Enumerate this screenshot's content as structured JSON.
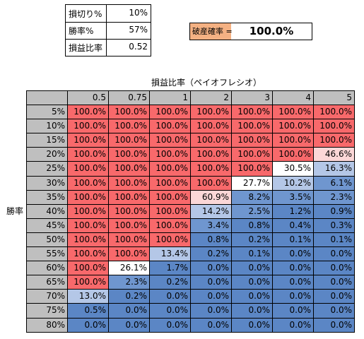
{
  "inputs": [
    {
      "label": "損切り%",
      "value": "10%"
    },
    {
      "label": "勝率%",
      "value": "57%"
    },
    {
      "label": "損益比率",
      "value": "0.52"
    }
  ],
  "ruin": {
    "label": "破産確率 =",
    "value": "100.0%"
  },
  "table": {
    "title": "損益比率（ペイオフレシオ）",
    "row_title": "勝率",
    "columns": [
      "0.5",
      "0.75",
      "1",
      "2",
      "3",
      "4",
      "5"
    ],
    "rows": [
      {
        "label": "5%",
        "values": [
          "100.0%",
          "100.0%",
          "100.0%",
          "100.0%",
          "100.0%",
          "100.0%",
          "100.0%"
        ]
      },
      {
        "label": "10%",
        "values": [
          "100.0%",
          "100.0%",
          "100.0%",
          "100.0%",
          "100.0%",
          "100.0%",
          "100.0%"
        ]
      },
      {
        "label": "15%",
        "values": [
          "100.0%",
          "100.0%",
          "100.0%",
          "100.0%",
          "100.0%",
          "100.0%",
          "100.0%"
        ]
      },
      {
        "label": "20%",
        "values": [
          "100.0%",
          "100.0%",
          "100.0%",
          "100.0%",
          "100.0%",
          "100.0%",
          "46.6%"
        ]
      },
      {
        "label": "25%",
        "values": [
          "100.0%",
          "100.0%",
          "100.0%",
          "100.0%",
          "100.0%",
          "30.5%",
          "16.3%"
        ]
      },
      {
        "label": "30%",
        "values": [
          "100.0%",
          "100.0%",
          "100.0%",
          "100.0%",
          "27.7%",
          "10.2%",
          "6.1%"
        ]
      },
      {
        "label": "35%",
        "values": [
          "100.0%",
          "100.0%",
          "100.0%",
          "60.9%",
          "8.2%",
          "3.5%",
          "2.3%"
        ]
      },
      {
        "label": "40%",
        "values": [
          "100.0%",
          "100.0%",
          "100.0%",
          "14.2%",
          "2.5%",
          "1.2%",
          "0.9%"
        ]
      },
      {
        "label": "45%",
        "values": [
          "100.0%",
          "100.0%",
          "100.0%",
          "3.4%",
          "0.8%",
          "0.4%",
          "0.3%"
        ]
      },
      {
        "label": "50%",
        "values": [
          "100.0%",
          "100.0%",
          "100.0%",
          "0.8%",
          "0.2%",
          "0.1%",
          "0.1%"
        ]
      },
      {
        "label": "55%",
        "values": [
          "100.0%",
          "100.0%",
          "13.4%",
          "0.2%",
          "0.1%",
          "0.0%",
          "0.0%"
        ]
      },
      {
        "label": "60%",
        "values": [
          "100.0%",
          "26.1%",
          "1.7%",
          "0.0%",
          "0.0%",
          "0.0%",
          "0.0%"
        ]
      },
      {
        "label": "65%",
        "values": [
          "100.0%",
          "2.3%",
          "0.2%",
          "0.0%",
          "0.0%",
          "0.0%",
          "0.0%"
        ]
      },
      {
        "label": "70%",
        "values": [
          "13.0%",
          "0.2%",
          "0.0%",
          "0.0%",
          "0.0%",
          "0.0%",
          "0.0%"
        ]
      },
      {
        "label": "75%",
        "values": [
          "0.5%",
          "0.0%",
          "0.0%",
          "0.0%",
          "0.0%",
          "0.0%",
          "0.0%"
        ]
      },
      {
        "label": "80%",
        "values": [
          "0.0%",
          "0.0%",
          "0.0%",
          "0.0%",
          "0.0%",
          "0.0%",
          "0.0%"
        ]
      }
    ]
  },
  "colors": {
    "header_gray": "#bfbfbf",
    "red": "#f8696b",
    "pink": "#fbd7d7",
    "light_blue": "#b4c7e7",
    "blue": "#6f96cf",
    "deep_blue": "#5b86c5",
    "ruin_label_bg": "#f4b183"
  }
}
